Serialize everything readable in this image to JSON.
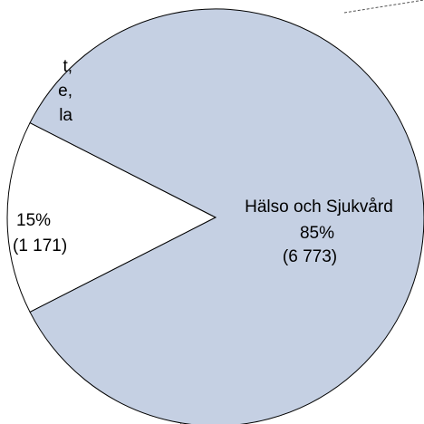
{
  "chart_data": {
    "type": "pie",
    "categories": [
      null,
      "Hälso och Sjukvård"
    ],
    "values": [
      15,
      85
    ],
    "value_labels": [
      "15%",
      "85%"
    ],
    "counts": [
      1171,
      6773
    ],
    "count_labels": [
      "(1 171)",
      "(6 773)"
    ],
    "colors": [
      "#ffffff",
      "#c5d0e3"
    ],
    "annotations": [
      "t,",
      "e,",
      "la"
    ]
  }
}
